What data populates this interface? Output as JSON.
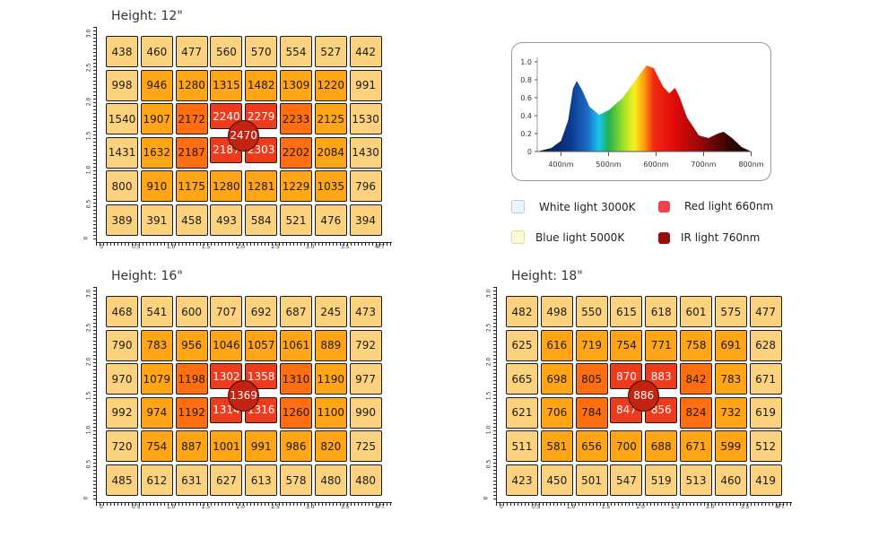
{
  "colors": {
    "low": "#fdd27e",
    "mid": "#ffa516",
    "high": "#ff6f12",
    "peak": "#ee3b1c",
    "center": "#c42312"
  },
  "x_axis_labels": [
    "0",
    "0.5",
    "1.0",
    "1.5",
    "2.0",
    "2.5",
    "3.0",
    "3.5",
    "4FT"
  ],
  "y_axis_labels": [
    "0",
    "0.5",
    "1.0",
    "1.5",
    "2.0",
    "2.5",
    "3.0"
  ],
  "charts": [
    {
      "title": "Height: 12\"",
      "center": "2470",
      "rows": [
        [
          "438",
          "460",
          "477",
          "560",
          "570",
          "554",
          "527",
          "442"
        ],
        [
          "998",
          "946",
          "1280",
          "1315",
          "1482",
          "1309",
          "1220",
          "991"
        ],
        [
          "1540",
          "1907",
          "2172",
          "2240",
          "2279",
          "2233",
          "2125",
          "1530"
        ],
        [
          "1431",
          "1632",
          "2187",
          "2187",
          "2303",
          "2202",
          "2084",
          "1430"
        ],
        [
          "800",
          "910",
          "1175",
          "1280",
          "1281",
          "1229",
          "1035",
          "796"
        ],
        [
          "389",
          "391",
          "458",
          "493",
          "584",
          "521",
          "476",
          "394"
        ]
      ]
    },
    {
      "title": "Height: 16\"",
      "center": "1369",
      "rows": [
        [
          "468",
          "541",
          "600",
          "707",
          "692",
          "687",
          "245",
          "473"
        ],
        [
          "790",
          "783",
          "956",
          "1046",
          "1057",
          "1061",
          "889",
          "792"
        ],
        [
          "970",
          "1079",
          "1198",
          "1302",
          "1358",
          "1310",
          "1190",
          "977"
        ],
        [
          "992",
          "974",
          "1192",
          "1314",
          "1316",
          "1260",
          "1100",
          "990"
        ],
        [
          "720",
          "754",
          "887",
          "1001",
          "991",
          "986",
          "820",
          "725"
        ],
        [
          "485",
          "612",
          "631",
          "627",
          "613",
          "578",
          "480",
          "480"
        ]
      ]
    },
    {
      "title": "Height: 18\"",
      "center": "886",
      "rows": [
        [
          "482",
          "498",
          "550",
          "615",
          "618",
          "601",
          "575",
          "477"
        ],
        [
          "625",
          "616",
          "719",
          "754",
          "771",
          "758",
          "691",
          "628"
        ],
        [
          "665",
          "698",
          "805",
          "870",
          "883",
          "842",
          "783",
          "671"
        ],
        [
          "621",
          "706",
          "784",
          "847",
          "856",
          "824",
          "732",
          "619"
        ],
        [
          "511",
          "581",
          "656",
          "700",
          "688",
          "671",
          "599",
          "512"
        ],
        [
          "423",
          "450",
          "501",
          "547",
          "519",
          "513",
          "460",
          "419"
        ]
      ]
    }
  ],
  "spectrum": {
    "y_ticks": [
      "0",
      "0.2",
      "0.4",
      "0.6",
      "0.8",
      "1.0"
    ],
    "x_ticks": [
      "400nm",
      "500nm",
      "600nm",
      "700nm",
      "800nm"
    ],
    "curve": [
      [
        350,
        0
      ],
      [
        380,
        0.04
      ],
      [
        400,
        0.12
      ],
      [
        415,
        0.35
      ],
      [
        425,
        0.7
      ],
      [
        433,
        0.79
      ],
      [
        445,
        0.68
      ],
      [
        460,
        0.5
      ],
      [
        480,
        0.41
      ],
      [
        500,
        0.46
      ],
      [
        530,
        0.6
      ],
      [
        560,
        0.82
      ],
      [
        580,
        0.96
      ],
      [
        595,
        0.93
      ],
      [
        615,
        0.72
      ],
      [
        628,
        0.65
      ],
      [
        640,
        0.71
      ],
      [
        650,
        0.6
      ],
      [
        665,
        0.38
      ],
      [
        690,
        0.18
      ],
      [
        710,
        0.15
      ],
      [
        730,
        0.2
      ],
      [
        742,
        0.22
      ],
      [
        760,
        0.15
      ],
      [
        780,
        0.05
      ],
      [
        800,
        0
      ]
    ]
  },
  "legend": [
    {
      "label": "White light 3000K",
      "color": "#e8f6fb"
    },
    {
      "label": "Red light 660nm",
      "color": "#f2434a"
    },
    {
      "label": "Blue light 5000K",
      "color": "#fbfbdc"
    },
    {
      "label": "IR light 760nm",
      "color": "#9c0b0b"
    }
  ]
}
